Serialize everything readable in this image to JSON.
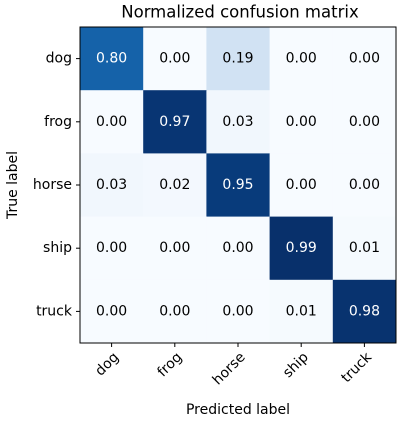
{
  "chart_data": {
    "type": "heatmap",
    "title": "Normalized confusion matrix",
    "x_label": "Predicted label",
    "y_label": "True label",
    "categories": [
      "dog",
      "frog",
      "horse",
      "ship",
      "truck"
    ],
    "rows": [
      "dog",
      "frog",
      "horse",
      "ship",
      "truck"
    ],
    "values": [
      [
        0.8,
        0.0,
        0.19,
        0.0,
        0.0
      ],
      [
        0.0,
        0.97,
        0.03,
        0.0,
        0.0
      ],
      [
        0.03,
        0.02,
        0.95,
        0.0,
        0.0
      ],
      [
        0.0,
        0.0,
        0.0,
        0.99,
        0.01
      ],
      [
        0.0,
        0.0,
        0.0,
        0.01,
        0.98
      ]
    ],
    "value_labels": [
      [
        "0.80",
        "0.00",
        "0.19",
        "0.00",
        "0.00"
      ],
      [
        "0.00",
        "0.97",
        "0.03",
        "0.00",
        "0.00"
      ],
      [
        "0.03",
        "0.02",
        "0.95",
        "0.00",
        "0.00"
      ],
      [
        "0.00",
        "0.00",
        "0.00",
        "0.99",
        "0.01"
      ],
      [
        "0.00",
        "0.00",
        "0.00",
        "0.01",
        "0.98"
      ]
    ],
    "colormap": "Blues"
  }
}
